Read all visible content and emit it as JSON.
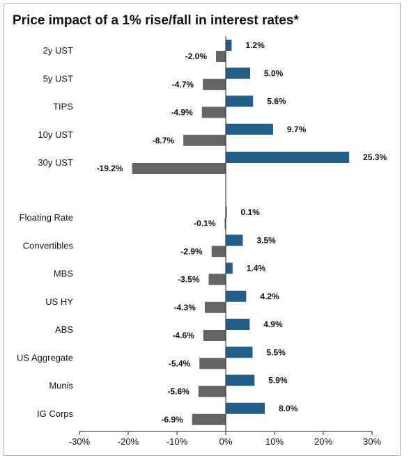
{
  "chart_data": {
    "type": "bar",
    "orientation": "horizontal",
    "title": "Price impact of a 1% rise/fall in interest rates*",
    "xlim": [
      -30,
      30
    ],
    "xticks": [
      "-30%",
      "-20%",
      "-10%",
      "0%",
      "10%",
      "20%",
      "30%"
    ],
    "grid": false,
    "colors": {
      "rise": "#215e8a",
      "fall": "#646464"
    },
    "categories": [
      "2y UST",
      "5y UST",
      "TIPS",
      "10y UST",
      "30y UST",
      "Floating Rate",
      "Convertibles",
      "MBS",
      "US HY",
      "ABS",
      "US Aggregate",
      "Munis",
      "IG Corps"
    ],
    "series": [
      {
        "values": [
          1.2,
          5.0,
          5.6,
          9.7,
          25.3,
          0.1,
          3.5,
          1.4,
          4.2,
          4.9,
          5.5,
          5.9,
          8.0
        ],
        "labels": [
          "1.2%",
          "5.0%",
          "5.6%",
          "9.7%",
          "25.3%",
          "0.1%",
          "3.5%",
          "1.4%",
          "4.2%",
          "4.9%",
          "5.5%",
          "5.9%",
          "8.0%"
        ]
      },
      {
        "values": [
          -2.0,
          -4.7,
          -4.9,
          -8.7,
          -19.2,
          -0.1,
          -2.9,
          -3.5,
          -4.3,
          -4.6,
          -5.4,
          -5.6,
          -6.9
        ],
        "labels": [
          "-2.0%",
          "-4.7%",
          "-4.9%",
          "-8.7%",
          "-19.2%",
          "-0.1%",
          "-2.9%",
          "-3.5%",
          "-4.3%",
          "-4.6%",
          "-5.4%",
          "-5.6%",
          "-6.9%"
        ]
      }
    ]
  }
}
